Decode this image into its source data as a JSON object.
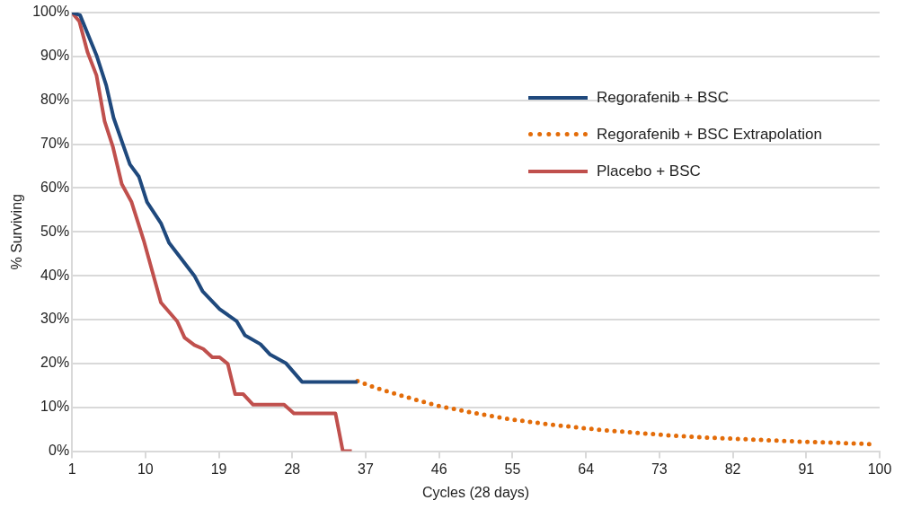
{
  "chart_data": {
    "type": "line",
    "xlabel": "Cycles (28 days)",
    "ylabel": "% Surviving",
    "xlim": [
      1,
      100
    ],
    "xticks": [
      1,
      10,
      19,
      28,
      37,
      46,
      55,
      64,
      73,
      82,
      91,
      100
    ],
    "ylim": [
      0,
      100
    ],
    "yticks": [
      {
        "value": 0,
        "label": "0%"
      },
      {
        "value": 10,
        "label": "10%"
      },
      {
        "value": 20,
        "label": "20%"
      },
      {
        "value": 30,
        "label": "30%"
      },
      {
        "value": 40,
        "label": "40%"
      },
      {
        "value": 50,
        "label": "50%"
      },
      {
        "value": 60,
        "label": "60%"
      },
      {
        "value": 70,
        "label": "70%"
      },
      {
        "value": 80,
        "label": "80%"
      },
      {
        "value": 90,
        "label": "90%"
      },
      {
        "value": 100,
        "label": "100%"
      }
    ],
    "grid": "y",
    "legend": "top right",
    "marker": "none",
    "series": [
      {
        "name": "Regorafenib + BSC",
        "color": "#1f497d",
        "line_style": "solid",
        "x": [
          1,
          2,
          2.3,
          4,
          5.2,
          6.1,
          8.1,
          9.2,
          10.2,
          11.9,
          12.9,
          16,
          17,
          19.1,
          21.2,
          22.2,
          24.1,
          25.3,
          27.2,
          29.2,
          36
        ],
        "values": [
          100,
          99.4,
          98,
          90.3,
          83.4,
          76,
          65.4,
          62.6,
          56.8,
          52,
          47.5,
          40,
          36.5,
          32.4,
          29.6,
          26.4,
          24.4,
          22,
          20.1,
          15.8,
          15.8
        ]
      },
      {
        "name": "Regorafenib + BSC Extrapolation",
        "color": "#e36c09",
        "line_style": "dotted",
        "x": [
          36,
          38,
          40,
          43,
          46,
          50,
          55,
          60,
          65,
          70,
          75,
          80,
          85,
          90,
          95,
          99
        ],
        "values": [
          16,
          14.6,
          13.4,
          11.8,
          10.3,
          8.8,
          7.2,
          6,
          5,
          4.2,
          3.5,
          3,
          2.6,
          2.2,
          1.9,
          1.6
        ]
      },
      {
        "name": "Placebo + BSC",
        "color": "#c0504d",
        "line_style": "solid",
        "x": [
          1,
          1.9,
          2.9,
          4,
          5,
          6,
          7.1,
          8.3,
          9.8,
          11.9,
          13.9,
          14.8,
          16,
          17.1,
          18.2,
          19.1,
          20.1,
          21,
          22,
          23.2,
          27,
          28.2,
          33.3,
          34.2,
          35.3
        ],
        "values": [
          100,
          98,
          91,
          85.7,
          75.2,
          69.5,
          60.9,
          56.8,
          48,
          33.9,
          29.6,
          25.9,
          24.2,
          23.3,
          21.4,
          21.4,
          19.9,
          13,
          13,
          10.6,
          10.6,
          8.6,
          8.6,
          0,
          0
        ]
      }
    ]
  }
}
